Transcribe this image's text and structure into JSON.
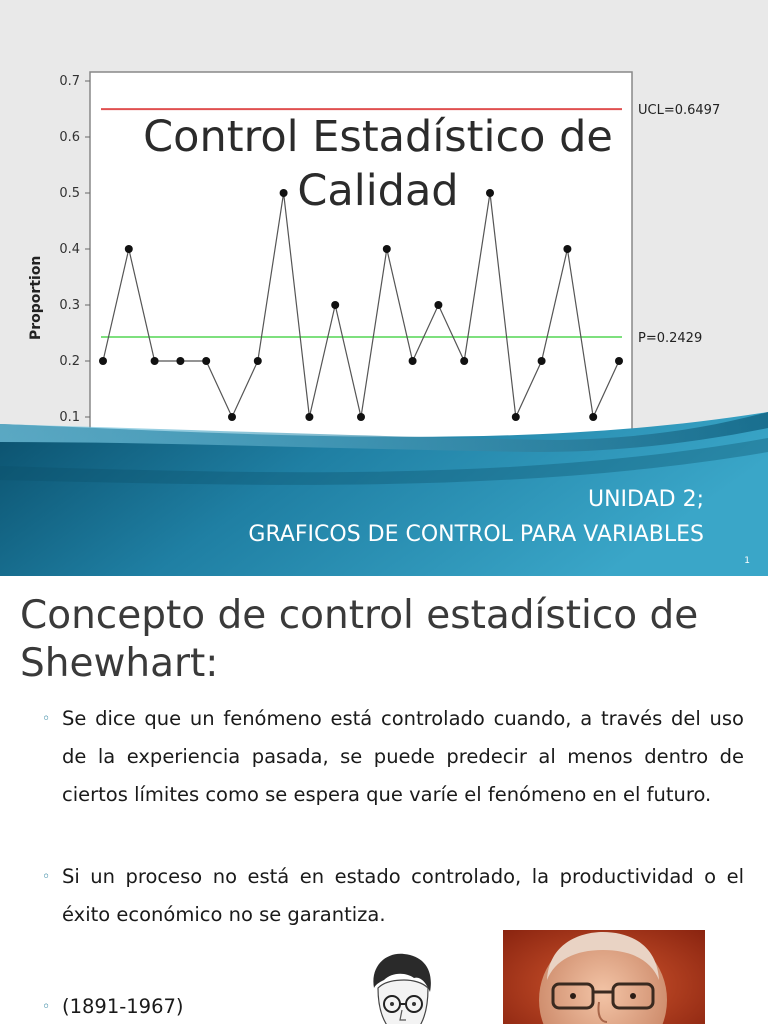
{
  "slide1": {
    "title_line1": "Control Estadístico de",
    "title_line2": "Calidad",
    "subtitle_line1": "UNIDAD 2;",
    "subtitle_line2": "GRAFICOS DE CONTROL PARA VARIABLES",
    "page_number": "1",
    "chart_data": {
      "type": "line",
      "title": "",
      "xlabel": "",
      "ylabel": "Proportion",
      "ylim": [
        0.1,
        0.7
      ],
      "y_ticks": [
        "0.1",
        "0.2",
        "0.3",
        "0.4",
        "0.5",
        "0.6",
        "0.7"
      ],
      "grid": false,
      "x": [
        1,
        2,
        3,
        4,
        5,
        6,
        7,
        8,
        9,
        10,
        11,
        12,
        13,
        14,
        15,
        16,
        17,
        18,
        19,
        20,
        21
      ],
      "series": [
        {
          "values": [
            0.2,
            0.4,
            0.2,
            0.2,
            0.2,
            0.1,
            0.2,
            0.5,
            0.1,
            0.3,
            0.1,
            0.4,
            0.2,
            0.3,
            0.2,
            0.5,
            0.1,
            0.2,
            0.4,
            0.1,
            0.2
          ]
        }
      ],
      "reference_lines": [
        {
          "label": "UCL=0.6497",
          "value": 0.6497,
          "color": "#e05050"
        },
        {
          "label": "P=0.2429",
          "value": 0.2429,
          "color": "#7ee07e"
        }
      ]
    }
  },
  "slide2": {
    "heading_line1": "Concepto de control estadístico de",
    "heading_line2": "Shewhart:",
    "bullets": [
      "Se dice que un fenómeno está controlado cuando, a través del uso de la experiencia pasada, se puede predecir al menos dentro de ciertos límites como se espera que varíe el fenómeno en el futuro.",
      "Si un proceso no está en estado controlado, la productividad o el éxito económico no se garantiza.",
      "(1891-1967)"
    ],
    "bullet_marker": "◦"
  },
  "colors": {
    "banner_dark": "#0a4f6b",
    "banner_light": "#3aa6c8",
    "accent": "#1f7a98"
  }
}
